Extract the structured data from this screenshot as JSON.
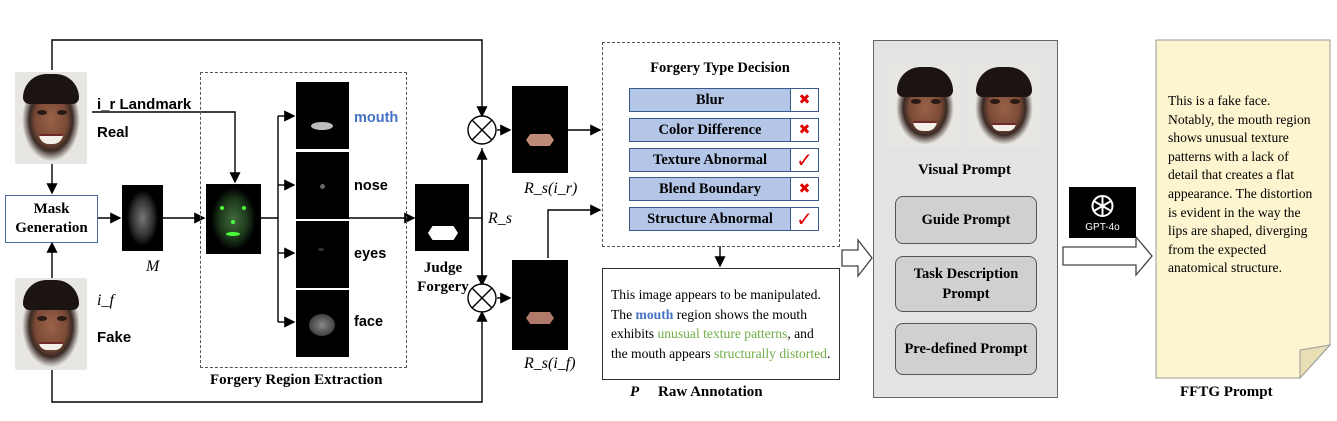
{
  "labels": {
    "ir_landmark": "i_r  Landmark",
    "real": "Real",
    "fake": "Fake",
    "if": "i_f",
    "mask_generation": "Mask Generation",
    "M": "M",
    "forgery_region_extraction": "Forgery Region Extraction",
    "regions": [
      "mouth",
      "nose",
      "eyes",
      "face"
    ],
    "judge_forgery": "Judge Forgery",
    "Rs": "R_s",
    "Rs_ir": "R_s(i_r)",
    "Rs_if": "R_s(i_f)",
    "P": "P",
    "raw_annotation": "Raw Annotation",
    "visual_prompt": "Visual Prompt",
    "fftg_prompt": "FFTG Prompt",
    "gpt": "GPT-4o"
  },
  "forgery_type_decision": {
    "title": "Forgery Type Decision",
    "items": [
      {
        "label": "Blur",
        "mark": "✖",
        "type": "cross"
      },
      {
        "label": "Color Difference",
        "mark": "✖",
        "type": "cross"
      },
      {
        "label": "Texture Abnormal",
        "mark": "✓",
        "type": "check"
      },
      {
        "label": "Blend Boundary",
        "mark": "✖",
        "type": "cross"
      },
      {
        "label": "Structure Abnormal",
        "mark": "✓",
        "type": "check"
      }
    ]
  },
  "raw_annotation_text": {
    "l1": "This image appears to be manipulated.",
    "l2a": "The ",
    "l2b": "mouth",
    "l2c": " region shows the mouth",
    "l3a": "exhibits ",
    "l3b": "unusual texture patterns",
    "l3c": ", and",
    "l4a": "the mouth appears ",
    "l4b": "structurally distorted",
    "l4c": "."
  },
  "prompts": {
    "guide": "Guide Prompt",
    "task_description": "Task Description Prompt",
    "pre_defined": "Pre-defined Prompt"
  },
  "fftg_text": "This is a fake face. Notably, the mouth region shows unusual texture patterns with a lack of detail that creates a flat appearance. The distortion is evident in the way the lips are shaped, diverging from the expected anatomical structure.",
  "colors": {
    "blue_accent": "#4472c4",
    "green_accent": "#70ad47",
    "type_box": "#b4c6e7",
    "note_bg": "#fdf5d0",
    "cross_red": "#e00000"
  }
}
